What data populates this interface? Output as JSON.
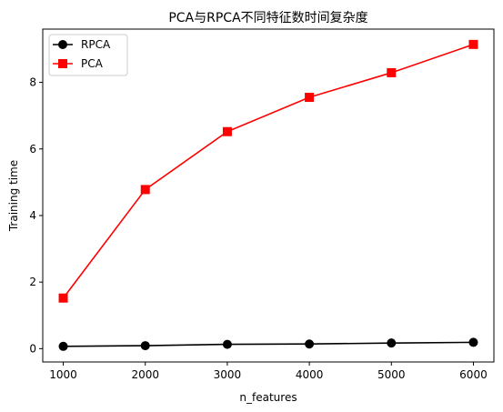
{
  "chart_data": {
    "type": "line",
    "title": "PCA与RPCA不同特征数时间复杂度",
    "xlabel": "n_features",
    "ylabel": "Training time",
    "x": [
      1000,
      2000,
      3000,
      4000,
      5000,
      6000
    ],
    "xlim": [
      750,
      6250
    ],
    "ylim": [
      -0.4,
      9.6
    ],
    "xticks": [
      1000,
      2000,
      3000,
      4000,
      5000,
      6000
    ],
    "yticks": [
      0,
      2,
      4,
      6,
      8
    ],
    "grid": false,
    "legend_position": "top-left",
    "series": [
      {
        "name": "RPCA",
        "marker": "circle",
        "color": "#000000",
        "values": [
          0.07,
          0.09,
          0.13,
          0.14,
          0.17,
          0.19
        ]
      },
      {
        "name": "PCA",
        "marker": "square",
        "color": "#ff0000",
        "values": [
          1.52,
          4.78,
          6.52,
          7.55,
          8.29,
          9.14
        ]
      }
    ]
  }
}
